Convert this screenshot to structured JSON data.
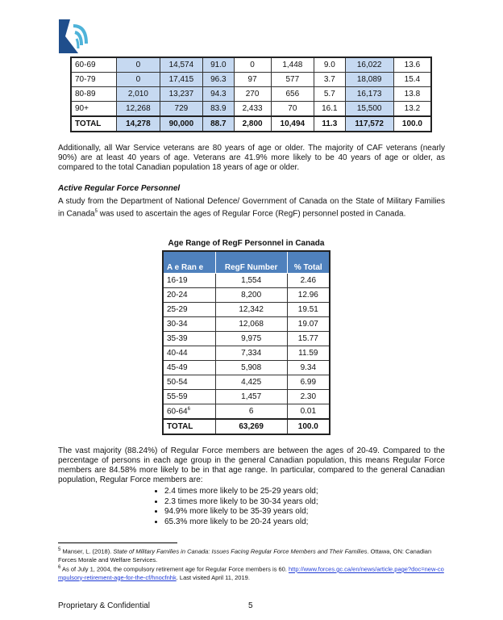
{
  "logo": {
    "colors": {
      "dark": "#1f4e8c",
      "light": "#4fb3d9"
    }
  },
  "table1": {
    "rows": [
      [
        "60-69",
        "0",
        "14,574",
        "91.0",
        "0",
        "1,448",
        "9.0",
        "16,022",
        "13.6"
      ],
      [
        "70-79",
        "0",
        "17,415",
        "96.3",
        "97",
        "577",
        "3.7",
        "18,089",
        "15.4"
      ],
      [
        "80-89",
        "2,010",
        "13,237",
        "94.3",
        "270",
        "656",
        "5.7",
        "16,173",
        "13.8"
      ],
      [
        "90+",
        "12,268",
        "729",
        "83.9",
        "2,433",
        "70",
        "16.1",
        "15,500",
        "13.2"
      ]
    ],
    "total": [
      "TOTAL",
      "14,278",
      "90,000",
      "88.7",
      "2,800",
      "10,494",
      "11.3",
      "117,572",
      "100.0"
    ]
  },
  "para1": "Additionally, all War Service veterans are 80 years of age or older. The majority of CAF veterans (nearly 90%) are at least 40 years of age. Veterans are 41.9% more likely to be 40 years of age or older, as compared to the total Canadian population 18 years of age or older.",
  "heading": "Active Regular Force Personnel",
  "para2a": "A study from the Department of National Defence/ Government of Canada on the State of Military Families in Canada",
  "para2sup": "5",
  "para2b": " was used to ascertain the ages of Regular Force (RegF) personnel posted in Canada.",
  "table2": {
    "caption": "Age Range of RegF Personnel in Canada",
    "headers": [
      "A e Ran e",
      "RegF Number",
      "% Total"
    ],
    "rows": [
      [
        "16-19",
        "1,554",
        "2.46"
      ],
      [
        "20-24",
        "8,200",
        "12.96"
      ],
      [
        "25-29",
        "12,342",
        "19.51"
      ],
      [
        "30-34",
        "12,068",
        "19.07"
      ],
      [
        "35-39",
        "9,975",
        "15.77"
      ],
      [
        "40-44",
        "7,334",
        "11.59"
      ],
      [
        "45-49",
        "5,908",
        "9.34"
      ],
      [
        "50-54",
        "4,425",
        "6.99"
      ],
      [
        "55-59",
        "1,457",
        "2.30"
      ],
      [
        "60-64",
        "6",
        "0.01"
      ]
    ],
    "last_row_sup": "6",
    "total": [
      "TOTAL",
      "63,269",
      "100.0"
    ]
  },
  "para3": "The vast majority (88.24%) of Regular Force members are between the ages of 20-49. Compared to the percentage of persons in each age group in the general Canadian population, this means Regular Force members are 84.58% more likely to be in that age range. In particular, compared to the general Canadian population, Regular Force members are:",
  "bullets": [
    "2.4 times more likely to be 25-29 years old;",
    "2.3 times more likely to be 30-34 years old;",
    "94.9% more likely to be 35-39 years old;",
    "65.3% more likely to be 20-24 years old;"
  ],
  "footnotes": {
    "f5_num": "5",
    "f5_a": "Manser, L. (2018). ",
    "f5_title": "State of Military Families in Canada: Issues Facing Regular Force Members and Their Families",
    "f5_b": ". Ottawa, ON: Canadian Forces Morale and Welfare Services.",
    "f6_num": "6",
    "f6_a": "As of July 1, 2004, the compulsory retirement age for Regular Force members is 60. ",
    "f6_link": "http://www.forces.gc.ca/en/news/article.page?doc=new-compulsory-retirement-age-for-the-cf/hnocfnhk",
    "f6_b": ". Last visited April 11, 2019."
  },
  "footer": {
    "left": "Proprietary & Confidential",
    "page": "5"
  }
}
